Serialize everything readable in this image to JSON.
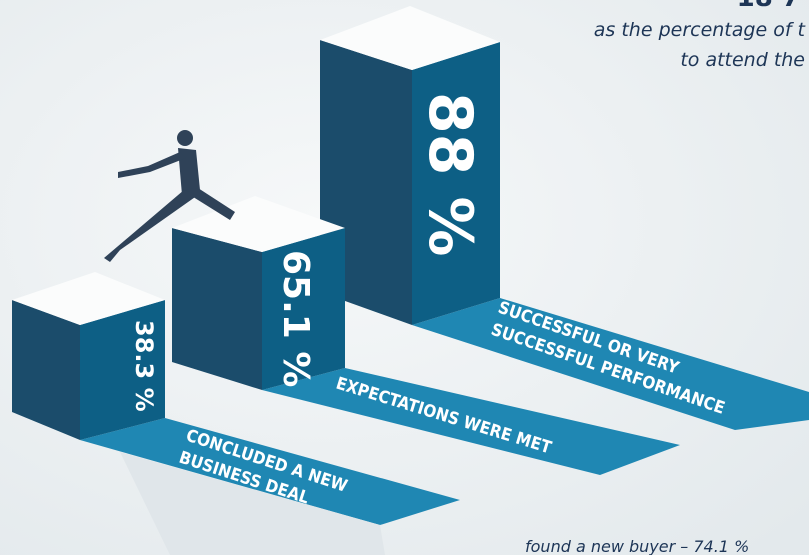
{
  "header": {
    "title": "18 7",
    "subtitle_lines": [
      "as the percentage of t",
      "to attend the"
    ]
  },
  "bars": [
    {
      "value_label": "38.3 %",
      "caption_lines": [
        "CONCLUDED A NEW",
        "BUSINESS DEAL"
      ]
    },
    {
      "value_label": "65.1 %",
      "caption_lines": [
        "EXPECTATIONS WERE MET"
      ]
    },
    {
      "value_label": "88 %",
      "caption_lines": [
        "SUCCESSFUL OR VERY",
        "SUCCESSFUL PERFORMANCE"
      ]
    }
  ],
  "footnote": "found a new buyer – 74.1 %"
}
